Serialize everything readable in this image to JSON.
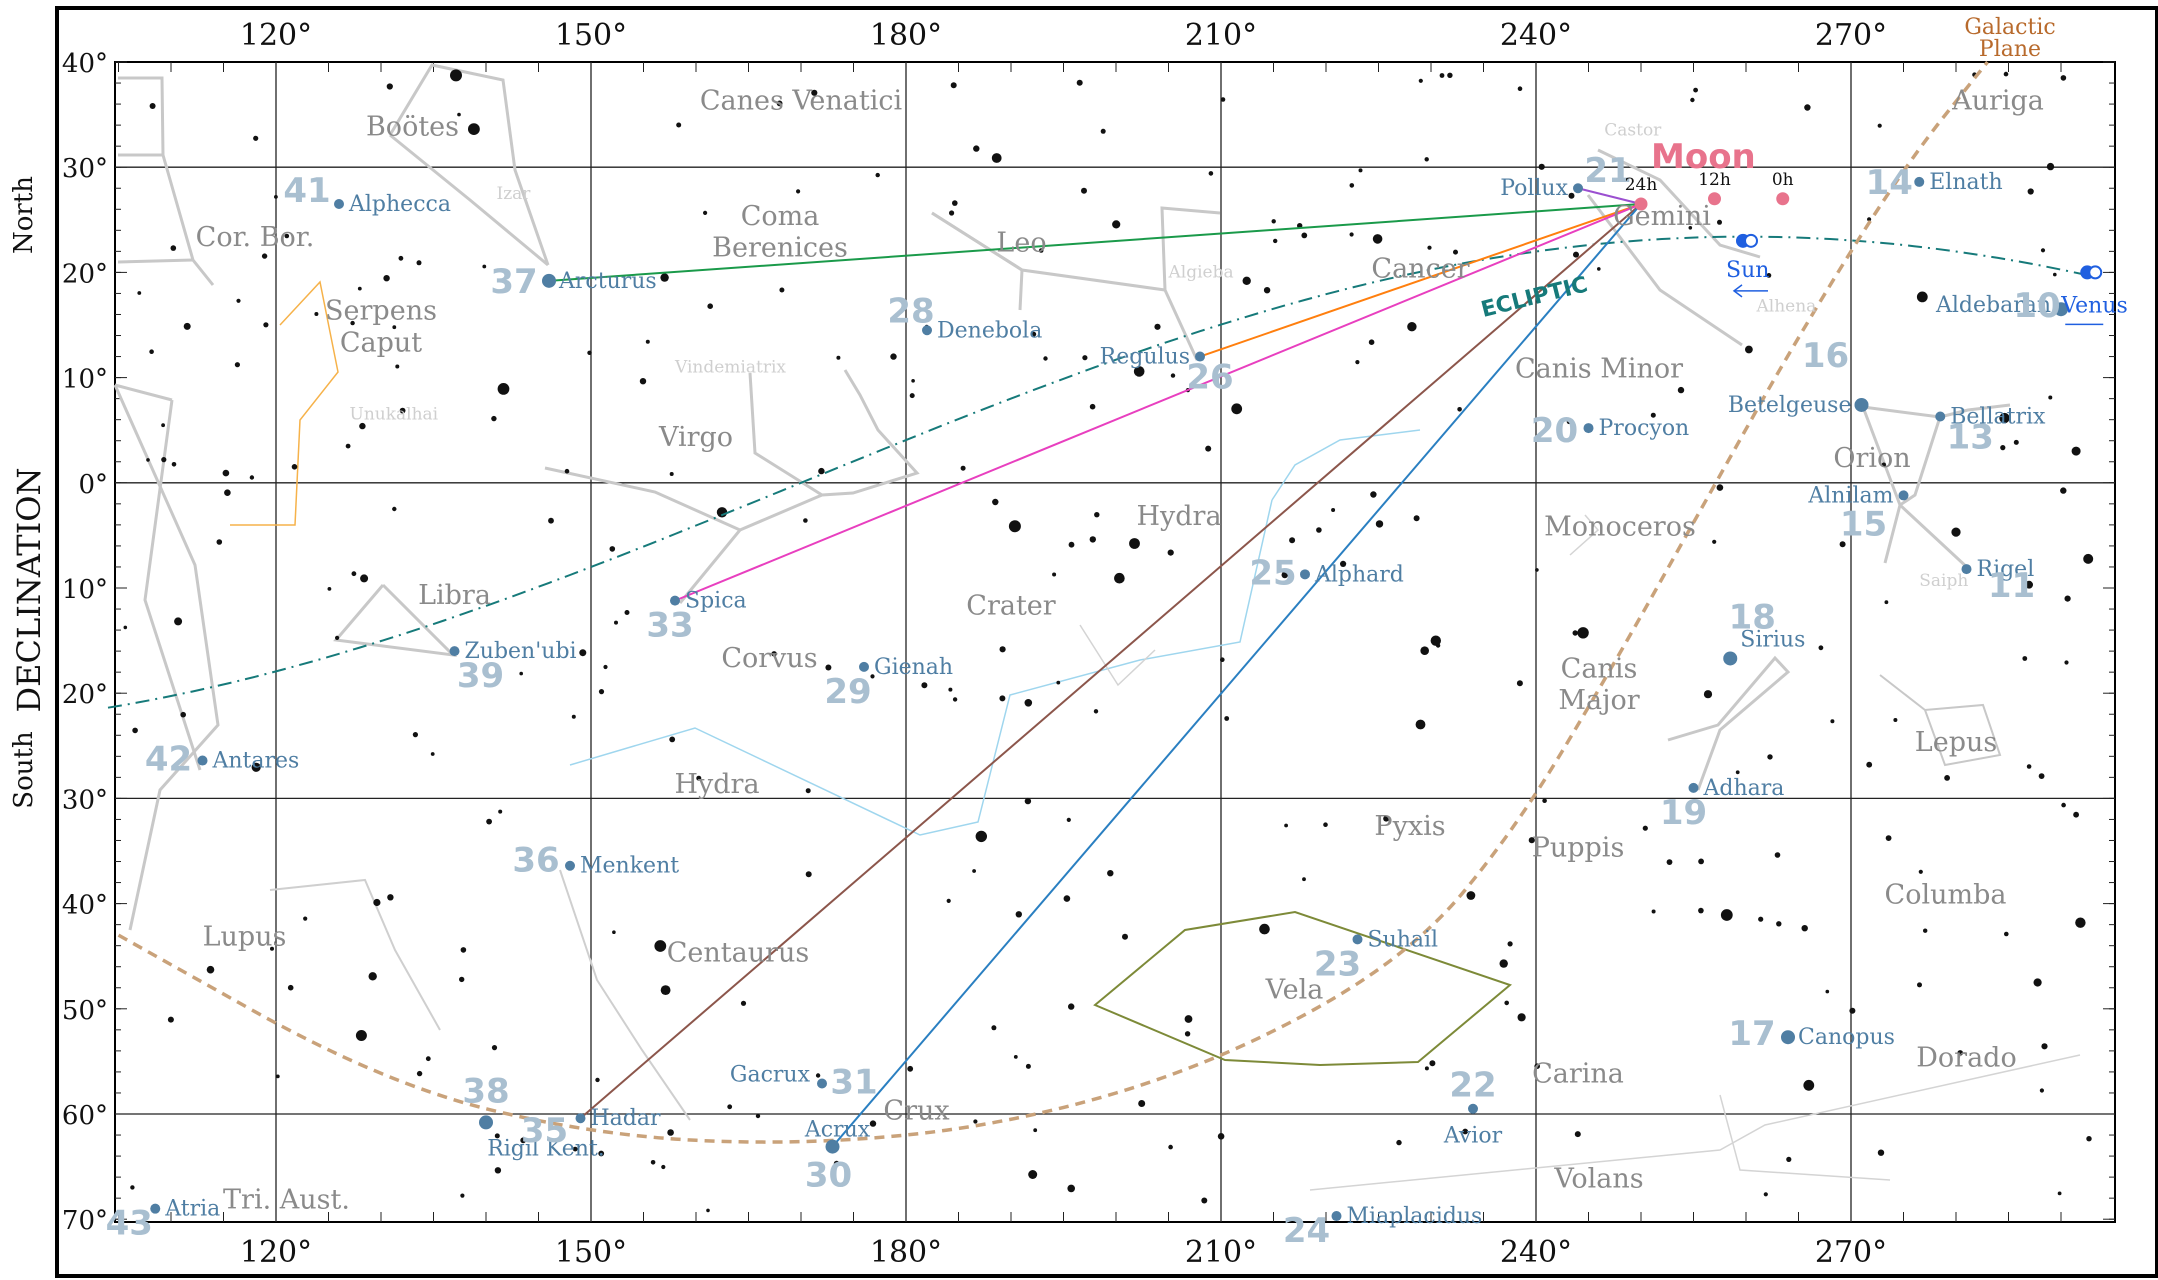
{
  "axes": {
    "ra_ticks": [
      "120°",
      "150°",
      "180°",
      "210°",
      "240°",
      "270°"
    ],
    "dec_ticks": [
      "40°",
      "30°",
      "20°",
      "10°",
      "0°",
      "10°",
      "20°",
      "30°",
      "40°",
      "50°",
      "60°",
      "70°"
    ],
    "side_title": "DECLINATION",
    "north": "North",
    "south": "South"
  },
  "constellations": [
    {
      "name": "Boötes",
      "ra": 133,
      "dec": 33
    },
    {
      "name": "Canes Venatici",
      "ra": 170,
      "dec": 35.5
    },
    {
      "name": "Auriga",
      "ra": 284,
      "dec": 35.5
    },
    {
      "name": "Cor. Bor.",
      "ra": 118,
      "dec": 22.5
    },
    {
      "name": "Coma",
      "ra": 168,
      "dec": 24.5
    },
    {
      "name": "Berenices",
      "ra": 168,
      "dec": 21.5
    },
    {
      "name": "Leo",
      "ra": 191,
      "dec": 22
    },
    {
      "name": "Cancer",
      "ra": 229,
      "dec": 19.5
    },
    {
      "name": "Gemini",
      "ra": 252,
      "dec": 24.5
    },
    {
      "name": "Serpens",
      "ra": 130,
      "dec": 15.5
    },
    {
      "name": "Caput",
      "ra": 130,
      "dec": 12.5
    },
    {
      "name": "Canis Minor",
      "ra": 246,
      "dec": 10
    },
    {
      "name": "Virgo",
      "ra": 160,
      "dec": 3.5
    },
    {
      "name": "Orion",
      "ra": 272,
      "dec": 1.5
    },
    {
      "name": "Hydra",
      "ra": 206,
      "dec": -4
    },
    {
      "name": "Monoceros",
      "ra": 248,
      "dec": -5
    },
    {
      "name": "Libra",
      "ra": 137,
      "dec": -11.5
    },
    {
      "name": "Crater",
      "ra": 190,
      "dec": -12.5
    },
    {
      "name": "Corvus",
      "ra": 167,
      "dec": -17.5
    },
    {
      "name": "Canis",
      "ra": 246,
      "dec": -18.5
    },
    {
      "name": "Major",
      "ra": 246,
      "dec": -21.5
    },
    {
      "name": "Lepus",
      "ra": 280,
      "dec": -25.5
    },
    {
      "name": "Hydra",
      "ra": 162,
      "dec": -29.5
    },
    {
      "name": "Pyxis",
      "ra": 228,
      "dec": -33.5
    },
    {
      "name": "Puppis",
      "ra": 244,
      "dec": -35.5
    },
    {
      "name": "Columba",
      "ra": 279,
      "dec": -40
    },
    {
      "name": "Lupus",
      "ra": 117,
      "dec": -44
    },
    {
      "name": "Centaurus",
      "ra": 164,
      "dec": -45.5
    },
    {
      "name": "Vela",
      "ra": 217,
      "dec": -49
    },
    {
      "name": "Carina",
      "ra": 244,
      "dec": -57
    },
    {
      "name": "Dorado",
      "ra": 281,
      "dec": -55.5
    },
    {
      "name": "Crux",
      "ra": 181,
      "dec": -60.5
    },
    {
      "name": "Volans",
      "ra": 246,
      "dec": -67
    },
    {
      "name": "Tri. Aust.",
      "ra": 121,
      "dec": -69
    }
  ],
  "stars": [
    {
      "num": "41",
      "name": "Alphecca",
      "ra": 126,
      "dec": 26.5
    },
    {
      "num": "37",
      "name": "Arcturus",
      "ra": 146,
      "dec": 19.2
    },
    {
      "num": "28",
      "name": "Denebola",
      "ra": 182,
      "dec": 14.5
    },
    {
      "num": "26",
      "name": "Regulus",
      "ra": 208,
      "dec": 12
    },
    {
      "num": "21",
      "name": "Pollux",
      "ra": 244,
      "dec": 28
    },
    {
      "num": "14",
      "name": "Elnath",
      "ra": 276.5,
      "dec": 28.6
    },
    {
      "num": "10",
      "name": "Aldebaran",
      "ra": 290,
      "dec": 16.5
    },
    {
      "num": "20",
      "name": "Procyon",
      "ra": 245,
      "dec": 5.2
    },
    {
      "num": "16",
      "name": "Betelgeuse",
      "ra": 271,
      "dec": 7.4
    },
    {
      "num": "13",
      "name": "Bellatrix",
      "ra": 278.5,
      "dec": 6.3
    },
    {
      "num": "15",
      "name": "Alnilam",
      "ra": 275,
      "dec": -1.2
    },
    {
      "num": "11",
      "name": "Rigel",
      "ra": 281,
      "dec": -8.2
    },
    {
      "num": "33",
      "name": "Spica",
      "ra": 158,
      "dec": -11.2
    },
    {
      "num": "25",
      "name": "Alphard",
      "ra": 218,
      "dec": -8.7
    },
    {
      "num": "39",
      "name": "Zuben'ubi",
      "ra": 137,
      "dec": -16
    },
    {
      "num": "29",
      "name": "Gienah",
      "ra": 176,
      "dec": -17.5
    },
    {
      "num": "18",
      "name": "Sirius",
      "ra": 258.5,
      "dec": -16.7
    },
    {
      "num": "42",
      "name": "Antares",
      "ra": 113,
      "dec": -26.4
    },
    {
      "num": "19",
      "name": "Adhara",
      "ra": 255,
      "dec": -29
    },
    {
      "num": "36",
      "name": "Menkent",
      "ra": 148,
      "dec": -36.4
    },
    {
      "num": "23",
      "name": "Suhail",
      "ra": 223,
      "dec": -43.4
    },
    {
      "num": "17",
      "name": "Canopus",
      "ra": 264,
      "dec": -52.7
    },
    {
      "num": "31",
      "name": "Gacrux",
      "ra": 172,
      "dec": -57.1
    },
    {
      "num": "22",
      "name": "Avior",
      "ra": 234,
      "dec": -59.5
    },
    {
      "num": "38",
      "name": "Rigil Kent.",
      "ra": 140,
      "dec": -60.8
    },
    {
      "num": "35",
      "name": "Hadar",
      "ra": 149,
      "dec": -60.4
    },
    {
      "num": "30",
      "name": "Acrux",
      "ra": 173,
      "dec": -63.1
    },
    {
      "num": "24",
      "name": "Miaplacidus",
      "ra": 221,
      "dec": -69.7
    },
    {
      "num": "43",
      "name": "Atria",
      "ra": 108.5,
      "dec": -69
    }
  ],
  "faint_labels": [
    {
      "name": "Izar",
      "ra": 141,
      "dec": 27
    },
    {
      "name": "Castor",
      "ra": 246.5,
      "dec": 33
    },
    {
      "name": "Algieba",
      "ra": 205,
      "dec": 19.5
    },
    {
      "name": "Vindemiatrix",
      "ra": 158,
      "dec": 10.5
    },
    {
      "name": "Unukalhai",
      "ra": 127,
      "dec": 6
    },
    {
      "name": "Alhena",
      "ra": 261,
      "dec": 16.3
    },
    {
      "name": "Saiph",
      "ra": 276.5,
      "dec": -9.8
    }
  ],
  "moon": {
    "label": "Moon",
    "ra": 250,
    "dec": 26.5,
    "hours": [
      {
        "label": "24h",
        "ra": 250,
        "dec": 26.5
      },
      {
        "label": "12h",
        "ra": 257,
        "dec": 27
      },
      {
        "label": "0h",
        "ra": 263.5,
        "dec": 27
      }
    ]
  },
  "sun": {
    "label": "Sun",
    "ra": 260,
    "dec": 23
  },
  "venus": {
    "label": "Venus",
    "ra": 292.5,
    "dec": 20
  },
  "ecliptic_label": "ECLIPTIC",
  "galactic_plane": [
    "Galactic",
    "Plane"
  ],
  "colors": {
    "arcturus": "#1a9a4a",
    "regulus": "#ff7f0e",
    "spica": "#e83fbf",
    "hadar": "#8c564b",
    "acrux": "#2a7fc1",
    "pollux": "#9b4fd0",
    "moon": "#e8738c",
    "navstar": "#4f7ea3",
    "ecliptic": "#167a7a",
    "galactic": "#c9a27a",
    "sun": "#1f5fe0"
  }
}
